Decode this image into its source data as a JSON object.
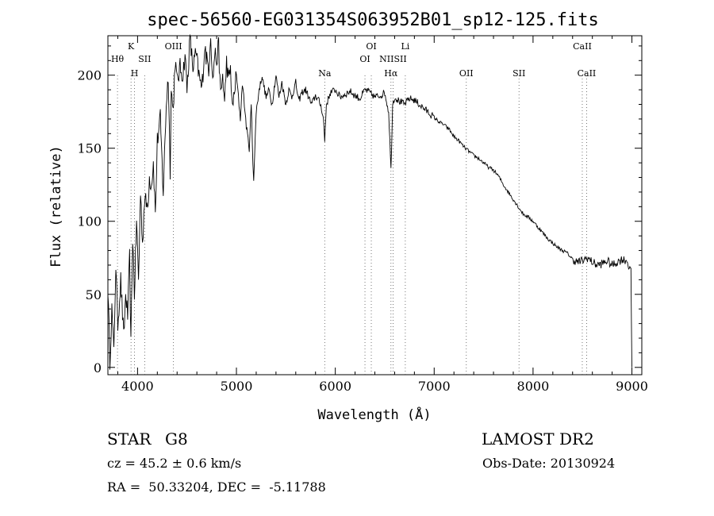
{
  "chart_data": {
    "type": "line",
    "title": "spec-56560-EG031354S063952B01_sp12-125.fits",
    "xlabel": "Wavelength (Å)",
    "ylabel": "Flux (relative)",
    "xlim": [
      3700,
      9100
    ],
    "ylim": [
      -5,
      227
    ],
    "xticks": [
      4000,
      5000,
      6000,
      7000,
      8000,
      9000
    ],
    "yticks": [
      0,
      50,
      100,
      150,
      200
    ],
    "grid": false,
    "series": [
      {
        "x": [
          3700,
          3720,
          3740,
          3760,
          3780,
          3800,
          3830,
          3860,
          3880,
          3900,
          3920,
          3933,
          3950,
          3968,
          3990,
          4010,
          4030,
          4050,
          4070,
          4101,
          4120,
          4140,
          4160,
          4180,
          4200,
          4230,
          4260,
          4290,
          4310,
          4330,
          4340,
          4360,
          4380,
          4400,
          4430,
          4460,
          4480,
          4500,
          4530,
          4560,
          4590,
          4620,
          4650,
          4680,
          4700,
          4720,
          4740,
          4760,
          4780,
          4800,
          4820,
          4840,
          4861,
          4880,
          4900,
          4920,
          4940,
          4960,
          4980,
          5000,
          5020,
          5040,
          5060,
          5080,
          5100,
          5130,
          5150,
          5167,
          5175,
          5184,
          5200,
          5230,
          5260,
          5270,
          5300,
          5330,
          5360,
          5400,
          5430,
          5460,
          5500,
          5530,
          5560,
          5600,
          5630,
          5660,
          5700,
          5730,
          5760,
          5800,
          5830,
          5860,
          5880,
          5893,
          5910,
          5950,
          6000,
          6050,
          6100,
          6150,
          6200,
          6250,
          6300,
          6350,
          6400,
          6450,
          6500,
          6540,
          6563,
          6580,
          6600,
          6650,
          6700,
          6750,
          6800,
          6850,
          6900,
          6950,
          7000,
          7050,
          7100,
          7150,
          7200,
          7250,
          7300,
          7350,
          7400,
          7450,
          7500,
          7550,
          7600,
          7650,
          7700,
          7750,
          7800,
          7850,
          7900,
          7950,
          8000,
          8050,
          8100,
          8150,
          8200,
          8250,
          8300,
          8350,
          8400,
          8450,
          8500,
          8550,
          8600,
          8650,
          8700,
          8750,
          8800,
          8850,
          8900,
          8950,
          8990,
          9000
        ],
        "values": [
          55,
          5,
          40,
          10,
          70,
          30,
          60,
          20,
          50,
          35,
          75,
          15,
          90,
          50,
          100,
          60,
          120,
          85,
          115,
          110,
          130,
          125,
          140,
          105,
          155,
          170,
          120,
          180,
          200,
          135,
          190,
          175,
          210,
          195,
          205,
          200,
          215,
          190,
          225,
          205,
          215,
          200,
          190,
          220,
          210,
          205,
          230,
          195,
          215,
          210,
          220,
          185,
          200,
          180,
          210,
          195,
          205,
          175,
          190,
          200,
          185,
          170,
          195,
          180,
          165,
          150,
          180,
          140,
          130,
          145,
          175,
          190,
          200,
          195,
          185,
          190,
          180,
          200,
          185,
          195,
          180,
          190,
          185,
          195,
          182,
          188,
          190,
          185,
          180,
          186,
          183,
          178,
          170,
          155,
          180,
          188,
          190,
          185,
          187,
          189,
          186,
          184,
          190,
          188,
          185,
          186,
          188,
          175,
          135,
          180,
          185,
          182,
          180,
          184,
          183,
          180,
          177,
          174,
          171,
          168,
          166,
          163,
          158,
          155,
          151,
          148,
          145,
          143,
          140,
          137,
          135,
          131,
          125,
          120,
          115,
          110,
          105,
          103,
          100,
          96,
          92,
          88,
          85,
          82,
          80,
          78,
          74,
          72,
          73,
          75,
          72,
          70,
          71,
          73,
          70,
          72,
          74,
          73,
          65,
          0
        ]
      }
    ],
    "lines_top": [
      {
        "label": "Hθ",
        "x": 3797
      },
      {
        "label": "K",
        "x": 3934
      },
      {
        "label": "SII",
        "x": 4072
      },
      {
        "label": "OIII",
        "x": 4363
      },
      {
        "label": "OI",
        "x": 6364
      },
      {
        "label": "Li",
        "x": 6708
      },
      {
        "label": "CaII",
        "x": 8498
      }
    ],
    "lines_bottom": [
      {
        "label": "H",
        "x": 3969
      },
      {
        "label": "Na",
        "x": 5893
      },
      {
        "label": "OI",
        "x": 6300
      },
      {
        "label": "Hα",
        "x": 6563
      },
      {
        "label": "NIISII",
        "x": 6584
      },
      {
        "label": "OII",
        "x": 7325
      },
      {
        "label": "SII",
        "x": 7858
      },
      {
        "label": "CaII",
        "x": 8542
      }
    ]
  },
  "info": {
    "class_label": "STAR",
    "subclass": "G8",
    "survey": "LAMOST DR2",
    "cz": "cz = 45.2 ± 0.6 km/s",
    "obs_date": "Obs-Date: 20130924",
    "radec": "RA =  50.33204, DEC =  -5.11788"
  }
}
